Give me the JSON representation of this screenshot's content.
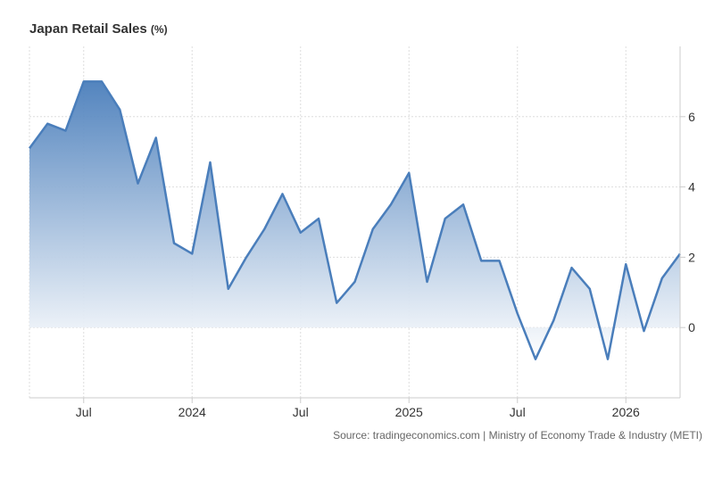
{
  "title": "Japan Retail Sales",
  "unit": "(%)",
  "source": "Source: tradingeconomics.com | Ministry of Economy Trade & Industry (METI)",
  "chart_data": {
    "type": "area",
    "title": "Japan Retail Sales",
    "xlabel": "",
    "ylabel": "",
    "ylim": [
      -2,
      8
    ],
    "yticks": [
      0,
      2,
      4,
      6
    ],
    "x_tick_labels": [
      "Jul",
      "2024",
      "Jul",
      "2025",
      "Jul",
      "2026"
    ],
    "series": [
      {
        "values": [
          5.1,
          5.8,
          5.6,
          7.0,
          7.0,
          6.2,
          4.1,
          5.4,
          2.4,
          2.1,
          4.7,
          1.1,
          2.0,
          2.8,
          3.8,
          2.7,
          3.1,
          0.7,
          1.3,
          2.8,
          3.5,
          4.4,
          1.3,
          3.1,
          3.5,
          1.9,
          1.9,
          0.4,
          -0.9,
          0.2,
          1.7,
          1.1,
          -0.9,
          1.8,
          -0.1,
          1.4,
          2.1
        ]
      }
    ],
    "grid": true,
    "colors": {
      "line": "#4a7ebb",
      "fill_top": "#4a7ebb",
      "fill_bottom": "#ffffff"
    }
  }
}
